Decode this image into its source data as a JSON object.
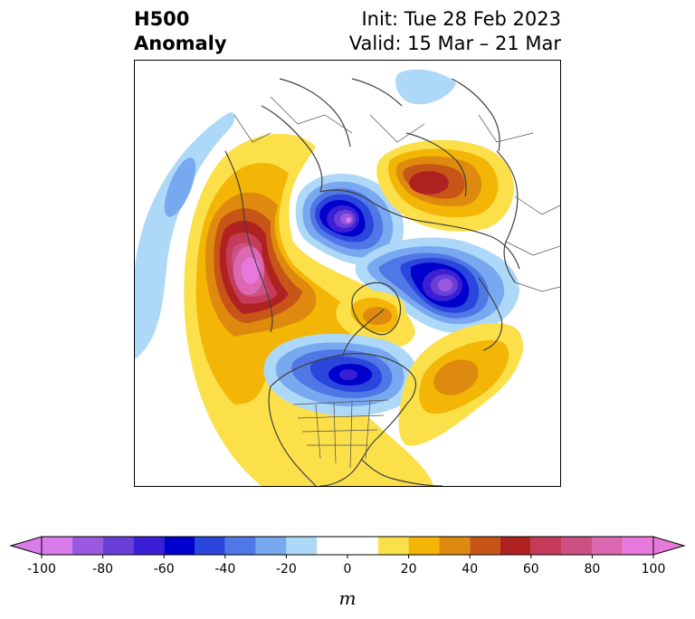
{
  "title": {
    "left_line1": "H500",
    "left_line2": "Anomaly",
    "right_line1": "Init: Tue 28 Feb 2023",
    "right_line2": "Valid: 15 Mar – 21 Mar"
  },
  "map": {
    "projection": "north-polar-stereographic",
    "field": "500 hPa geopotential height anomaly",
    "anomaly_centers": [
      {
        "region": "Gulf of Alaska / Bering Sea",
        "sign": "positive",
        "peak_m": 100
      },
      {
        "region": "Eastern Siberia",
        "sign": "negative",
        "peak_m": -90
      },
      {
        "region": "Northern Europe / Scandinavia",
        "sign": "positive",
        "peak_m": 60
      },
      {
        "region": "Western Russia / Kara Sea",
        "sign": "negative",
        "peak_m": -90
      },
      {
        "region": "Greenland",
        "sign": "positive",
        "peak_m": 40
      },
      {
        "region": "Hudson Bay / Eastern Canada",
        "sign": "negative",
        "peak_m": -60
      },
      {
        "region": "Central North Atlantic",
        "sign": "positive",
        "peak_m": 40
      },
      {
        "region": "Subtropical North Pacific",
        "sign": "negative",
        "peak_m": -30
      }
    ]
  },
  "colorbar": {
    "units": "m",
    "extend": "both",
    "boundaries": [
      -100,
      -90,
      -80,
      -70,
      -60,
      -50,
      -40,
      -30,
      -20,
      -10,
      10,
      20,
      30,
      40,
      50,
      60,
      70,
      80,
      90,
      100
    ],
    "colors": [
      "#d97be8",
      "#9b59e0",
      "#6a3fd8",
      "#3b1fd4",
      "#0000cc",
      "#2a46dc",
      "#5077e6",
      "#78a9f0",
      "#aed8f7",
      "#ffffff",
      "#fbe04a",
      "#f3b506",
      "#de8a0e",
      "#c75518",
      "#b02222",
      "#c43c5a",
      "#cd5082",
      "#dc68b4",
      "#e879dc"
    ],
    "under_color": "#d97be8",
    "over_color": "#e879dc",
    "tick_values": [
      -100,
      -80,
      -60,
      -40,
      -20,
      0,
      20,
      40,
      60,
      80,
      100
    ],
    "tick_labels": [
      "-100",
      "-80",
      "-60",
      "-40",
      "-20",
      "0",
      "20",
      "40",
      "60",
      "80",
      "100"
    ]
  }
}
